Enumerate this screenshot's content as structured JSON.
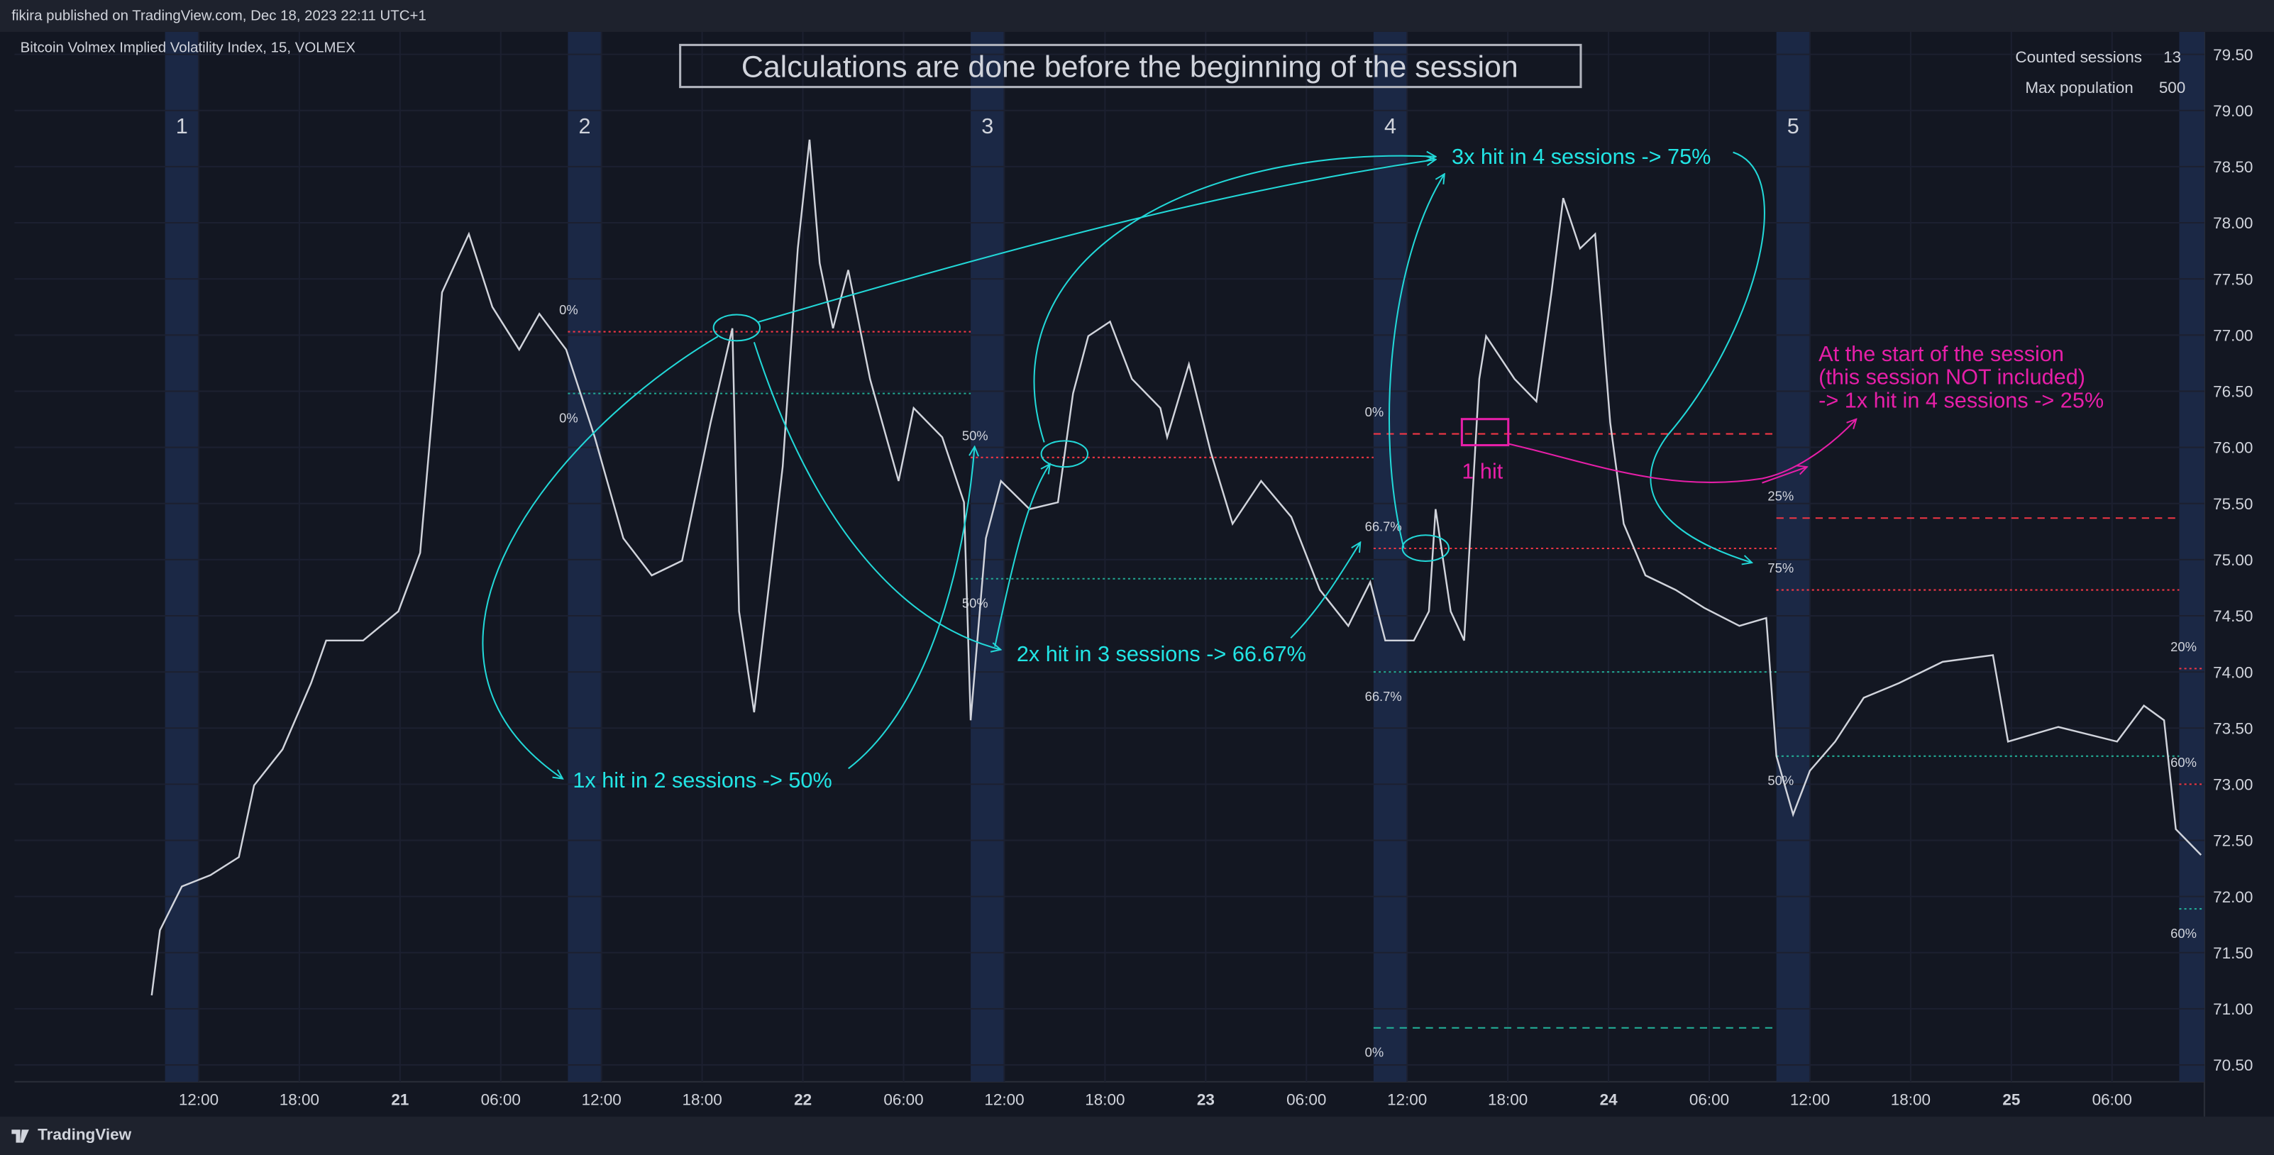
{
  "header": {
    "publisher": "fikira published on TradingView.com, Dec 18, 2023 22:11 UTC+1",
    "symbol": "Bitcoin Volmex Implied Volatility Index, 15, VOLMEX"
  },
  "info": {
    "rows": [
      [
        "Counted sessions",
        "13"
      ],
      [
        "Max population",
        "500"
      ]
    ]
  },
  "footer": {
    "brand": "TradingView"
  },
  "chart_data": {
    "type": "line",
    "title": "Calculations are done before the beginning of the session",
    "annotations": [
      "1x hit in 2 sessions -> 50%",
      "2x hit in 3 sessions -> 66.67%",
      "3x hit in 4 sessions -> 75%",
      "At the start of the session",
      "(this session NOT included)",
      "-> 1x hit in 4 sessions -> 25%",
      "1 hit"
    ],
    "x": [
      9.2,
      9.7,
      11.0,
      12.7,
      14.4,
      15.3,
      17.0,
      18.7,
      19.6,
      21.8,
      23.9,
      25.2,
      26.1,
      26.5,
      28.1,
      29.5,
      31.1,
      32.3,
      33.9,
      35.6,
      37.3,
      39.0,
      40.8,
      42.5,
      43.8,
      44.2,
      45.1,
      46.0,
      46.8,
      47.7,
      48.4,
      49.0,
      49.8,
      50.7,
      52.0,
      53.7,
      54.6,
      56.3,
      57.6,
      58.0,
      58.9,
      59.8,
      61.5,
      63.2,
      64.1,
      65.0,
      66.3,
      67.6,
      69.3,
      69.7,
      71.0,
      72.3,
      73.6,
      75.3,
      77.1,
      78.8,
      80.5,
      81.8,
      82.7,
      84.4,
      85.3,
      85.7,
      86.6,
      87.4,
      88.3,
      88.7,
      90.4,
      91.7,
      92.6,
      93.3,
      94.3,
      95.2,
      96.1,
      96.9,
      98.2,
      100.0,
      101.7,
      103.8,
      105.4,
      106.0,
      107.0,
      108.0,
      109.5,
      111.2,
      113.3,
      115.9,
      118.9,
      119.8,
      122.8,
      126.3,
      127.9,
      129.1,
      129.8,
      131.3
    ],
    "values": [
      71.12,
      71.7,
      72.09,
      72.19,
      72.35,
      72.99,
      73.31,
      73.9,
      74.28,
      74.28,
      74.54,
      75.06,
      76.61,
      77.38,
      77.9,
      77.25,
      76.87,
      77.19,
      76.87,
      76.09,
      75.19,
      74.86,
      74.99,
      76.22,
      77.06,
      74.54,
      73.64,
      74.8,
      75.83,
      77.77,
      78.74,
      77.64,
      77.06,
      77.58,
      76.61,
      75.7,
      76.35,
      76.09,
      75.51,
      73.57,
      75.19,
      75.7,
      75.45,
      75.51,
      76.48,
      76.99,
      77.12,
      76.61,
      76.35,
      76.09,
      76.74,
      75.96,
      75.32,
      75.7,
      75.38,
      74.73,
      74.41,
      74.8,
      74.28,
      74.28,
      74.54,
      75.45,
      74.54,
      74.28,
      76.61,
      76.99,
      76.61,
      76.41,
      77.38,
      78.22,
      77.77,
      77.9,
      76.22,
      75.32,
      74.86,
      74.73,
      74.57,
      74.41,
      74.48,
      73.25,
      72.73,
      73.12,
      73.38,
      73.77,
      73.9,
      74.09,
      74.15,
      73.38,
      73.51,
      73.38,
      73.7,
      73.57,
      72.6,
      72.37
    ],
    "color": "#d1d4dc",
    "sessions": [
      {
        "label": "1",
        "x": [
          10,
          12
        ]
      },
      {
        "label": "2",
        "x": [
          34,
          36
        ]
      },
      {
        "label": "3",
        "x": [
          58,
          60
        ]
      },
      {
        "label": "4",
        "x": [
          82,
          84
        ]
      },
      {
        "label": "5",
        "x": [
          106,
          108
        ]
      },
      {
        "label": null,
        "x": [
          130,
          132
        ]
      }
    ],
    "session_color": "#1b2845",
    "levels": [
      {
        "label": "0%",
        "value": 77.03,
        "x": [
          34,
          58
        ],
        "color": "#f23645",
        "style": "dotted"
      },
      {
        "label": "0%",
        "value": 76.48,
        "x": [
          34,
          58
        ],
        "color": "#22ab94",
        "style": "dotted"
      },
      {
        "label": "50%",
        "value": 75.91,
        "x": [
          58,
          82
        ],
        "color": "#f23645",
        "style": "dotted"
      },
      {
        "label": "50%",
        "value": 74.83,
        "x": [
          58,
          82
        ],
        "color": "#22ab94",
        "style": "dotted"
      },
      {
        "label": "0%",
        "value": 76.12,
        "x": [
          82,
          106
        ],
        "color": "#f23645",
        "style": "dashed"
      },
      {
        "label": "66.7%",
        "value": 75.1,
        "x": [
          82,
          106
        ],
        "color": "#f23645",
        "style": "dotted"
      },
      {
        "label": "66.7%",
        "value": 74.0,
        "x": [
          82,
          106
        ],
        "color": "#22ab94",
        "style": "dotted"
      },
      {
        "label": "0%",
        "value": 70.83,
        "x": [
          82,
          106
        ],
        "color": "#22ab94",
        "style": "dashed"
      },
      {
        "label": "25%",
        "value": 75.37,
        "x": [
          106,
          130
        ],
        "color": "#f23645",
        "style": "dashed"
      },
      {
        "label": "75%",
        "value": 74.73,
        "x": [
          106,
          130
        ],
        "color": "#f23645",
        "style": "dotted"
      },
      {
        "label": "50%",
        "value": 73.25,
        "x": [
          106,
          130
        ],
        "color": "#22ab94",
        "style": "dotted"
      },
      {
        "label": "20%",
        "value": 74.03,
        "x": [
          130,
          131.5
        ],
        "color": "#f23645",
        "style": "dotted"
      },
      {
        "label": "60%",
        "value": 73.0,
        "x": [
          130,
          131.5
        ],
        "color": "#f23645",
        "style": "dotted"
      },
      {
        "label": "60%",
        "value": 71.89,
        "x": [
          130,
          131.5
        ],
        "color": "#22ab94",
        "style": "dotted"
      }
    ],
    "xlim": [
      1.03,
      131.5
    ],
    "ylim": [
      70.35,
      79.7
    ],
    "grid": true,
    "xticks": [
      {
        "value": 12,
        "label": "12:00"
      },
      {
        "value": 18,
        "label": "18:00"
      },
      {
        "value": 24,
        "label": "21"
      },
      {
        "value": 30,
        "label": "06:00"
      },
      {
        "value": 36,
        "label": "12:00"
      },
      {
        "value": 42,
        "label": "18:00"
      },
      {
        "value": 48,
        "label": "22"
      },
      {
        "value": 54,
        "label": "06:00"
      },
      {
        "value": 60,
        "label": "12:00"
      },
      {
        "value": 66,
        "label": "18:00"
      },
      {
        "value": 72,
        "label": "23"
      },
      {
        "value": 78,
        "label": "06:00"
      },
      {
        "value": 84,
        "label": "12:00"
      },
      {
        "value": 90,
        "label": "18:00"
      },
      {
        "value": 96,
        "label": "24"
      },
      {
        "value": 102,
        "label": "06:00"
      },
      {
        "value": 108,
        "label": "12:00"
      },
      {
        "value": 114,
        "label": "18:00"
      },
      {
        "value": 120,
        "label": "25"
      },
      {
        "value": 126,
        "label": "06:00"
      }
    ],
    "yticks": [
      {
        "value": 70.5,
        "label": "70.50"
      },
      {
        "value": 71,
        "label": "71.00"
      },
      {
        "value": 71.5,
        "label": "71.50"
      },
      {
        "value": 72,
        "label": "72.00"
      },
      {
        "value": 72.5,
        "label": "72.50"
      },
      {
        "value": 73,
        "label": "73.00"
      },
      {
        "value": 73.5,
        "label": "73.50"
      },
      {
        "value": 74,
        "label": "74.00"
      },
      {
        "value": 74.5,
        "label": "74.50"
      },
      {
        "value": 75,
        "label": "75.00"
      },
      {
        "value": 75.5,
        "label": "75.50"
      },
      {
        "value": 76,
        "label": "76.00"
      },
      {
        "value": 76.5,
        "label": "76.50"
      },
      {
        "value": 77,
        "label": "77.00"
      },
      {
        "value": 77.5,
        "label": "77.50"
      },
      {
        "value": 78,
        "label": "78.00"
      },
      {
        "value": 78.5,
        "label": "78.50"
      },
      {
        "value": 79,
        "label": "79.00"
      },
      {
        "value": 79.5,
        "label": "79.50"
      }
    ]
  }
}
